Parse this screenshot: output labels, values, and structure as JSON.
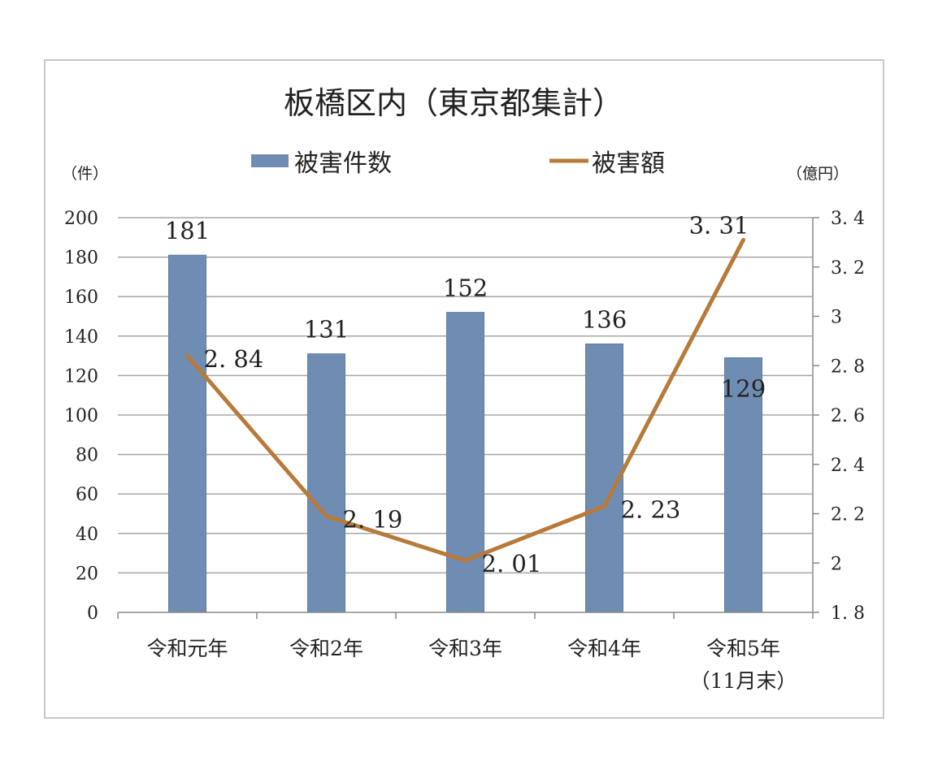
{
  "chart_data": {
    "type": "bar+line",
    "title": "板橋区内（東京都集計）",
    "categories": [
      "令和元年",
      "令和2年",
      "令和3年",
      "令和4年",
      "令和5年"
    ],
    "category_sublabels": [
      "",
      "",
      "",
      "",
      "（11月末）"
    ],
    "series": [
      {
        "name": "被害件数",
        "type": "bar",
        "axis": "left",
        "color": "#6f8db3",
        "values": [
          181,
          131,
          152,
          136,
          129
        ],
        "labels": [
          "181",
          "131",
          "152",
          "136",
          "129"
        ]
      },
      {
        "name": "被害額",
        "type": "line",
        "axis": "right",
        "color": "#b87a3a",
        "values": [
          2.84,
          2.19,
          2.01,
          2.23,
          3.31
        ],
        "labels": [
          "2. 84",
          "2. 19",
          "2. 01",
          "2. 23",
          "3. 31"
        ]
      }
    ],
    "y_left": {
      "unit": "（件）",
      "min": 0,
      "max": 200,
      "ticks": [
        0,
        20,
        40,
        60,
        80,
        100,
        120,
        140,
        160,
        180,
        200
      ]
    },
    "y_right": {
      "unit": "（億円）",
      "min": 1.8,
      "max": 3.4,
      "ticks": [
        "1. 8",
        "2",
        "2. 2",
        "2. 4",
        "2. 6",
        "2. 8",
        "3",
        "3. 2",
        "3. 4"
      ]
    },
    "grid": true,
    "legend_position": "top",
    "colors": {
      "gridline": "#a6a6a6",
      "axis": "#888888",
      "frame": "#c8c8c8"
    }
  }
}
